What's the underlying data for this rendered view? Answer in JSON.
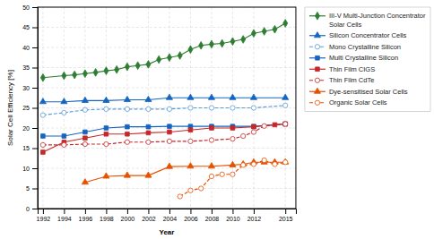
{
  "chart_data": {
    "type": "line",
    "xlabel": "Year",
    "ylabel": "Solar Cell Efficiency [%]",
    "xlim": [
      1991.5,
      2016
    ],
    "ylim": [
      0,
      50
    ],
    "xticks": [
      1992,
      1994,
      1996,
      1998,
      2000,
      2002,
      2004,
      2006,
      2008,
      2010,
      2012,
      2015
    ],
    "yticks": [
      0,
      5,
      10,
      15,
      20,
      25,
      30,
      35,
      40,
      45,
      50
    ],
    "grid": true,
    "legend": "right",
    "series": [
      {
        "name": "III-V Multi-Junction Concentrator\nSolar Cells",
        "color": "#2e7d32",
        "marker": "diamond",
        "line_style": "solid",
        "x": [
          1992,
          1994,
          1995,
          1996,
          1997,
          1998,
          1999,
          2000,
          2001,
          2002,
          2003,
          2004,
          2005,
          2006,
          2007,
          2008,
          2009,
          2010,
          2011,
          2012,
          2013,
          2014,
          2015
        ],
        "values": [
          32.5,
          33.0,
          33.2,
          33.5,
          33.8,
          34.2,
          34.5,
          35.2,
          35.5,
          35.8,
          37.0,
          37.5,
          38.0,
          39.5,
          40.5,
          40.8,
          41.0,
          41.5,
          42.0,
          43.5,
          44.0,
          44.5,
          46.0
        ]
      },
      {
        "name": "Silicon Concentrator Cells",
        "color": "#1565c0",
        "marker": "triangle",
        "line_style": "solid",
        "x": [
          1992,
          1994,
          1996,
          1998,
          2000,
          2002,
          2004,
          2006,
          2008,
          2010,
          2012,
          2015
        ],
        "values": [
          26.5,
          26.5,
          26.8,
          26.8,
          27.0,
          27.0,
          27.5,
          27.5,
          27.5,
          27.5,
          27.5,
          27.5
        ]
      },
      {
        "name": "Mono Crystalline Silicon",
        "color": "#5b9bd5",
        "marker": "circle-open",
        "line_style": "dashed",
        "x": [
          1992,
          1994,
          1996,
          1998,
          2000,
          2002,
          2004,
          2006,
          2008,
          2010,
          2012,
          2015
        ],
        "values": [
          23.2,
          23.8,
          24.5,
          24.7,
          24.7,
          24.7,
          24.7,
          25.0,
          25.0,
          25.0,
          25.0,
          25.6
        ]
      },
      {
        "name": "Multi Crystalline Silicon",
        "color": "#1565c0",
        "marker": "square",
        "line_style": "solid",
        "x": [
          1992,
          1994,
          1996,
          1998,
          2000,
          2002,
          2004,
          2006,
          2008,
          2010,
          2012,
          2015
        ],
        "values": [
          18.0,
          18.0,
          19.0,
          20.0,
          20.3,
          20.3,
          20.4,
          20.4,
          20.4,
          20.4,
          20.4,
          21.0
        ]
      },
      {
        "name": "Thin Film CIGS",
        "color": "#c62828",
        "marker": "square",
        "line_style": "solid",
        "x": [
          1992,
          1994,
          1996,
          1998,
          2000,
          2002,
          2004,
          2006,
          2008,
          2010,
          2012,
          2014,
          2015
        ],
        "values": [
          14.0,
          16.5,
          17.5,
          18.5,
          18.5,
          18.8,
          19.0,
          19.5,
          20.0,
          20.0,
          20.3,
          20.8,
          21.0
        ]
      },
      {
        "name": "Thin Film CdTe",
        "color": "#c62828",
        "marker": "circle-open",
        "line_style": "dashed",
        "x": [
          1992,
          1994,
          1996,
          1998,
          2000,
          2002,
          2004,
          2006,
          2008,
          2010,
          2011,
          2012,
          2013,
          2015
        ],
        "values": [
          15.8,
          15.8,
          16.0,
          16.0,
          16.5,
          16.5,
          16.7,
          16.7,
          17.0,
          17.3,
          18.0,
          19.0,
          20.5,
          21.0
        ]
      },
      {
        "name": "Dye-sensitised Solar Cells",
        "color": "#e65100",
        "marker": "triangle",
        "line_style": "solid",
        "x": [
          1996,
          1998,
          2000,
          2002,
          2004,
          2006,
          2008,
          2010,
          2011,
          2012,
          2013,
          2014,
          2015
        ],
        "values": [
          6.5,
          8.0,
          8.2,
          8.2,
          10.4,
          10.5,
          10.5,
          10.8,
          11.0,
          11.5,
          11.5,
          11.5,
          11.5
        ]
      },
      {
        "name": "Organic Solar Cells",
        "color": "#e65100",
        "marker": "circle-open",
        "line_style": "dashed",
        "x": [
          2005,
          2006,
          2007,
          2008,
          2009,
          2010,
          2011,
          2012,
          2013,
          2014,
          2015
        ],
        "values": [
          3.0,
          4.5,
          5.0,
          8.0,
          8.5,
          8.5,
          10.8,
          11.0,
          12.0,
          11.0,
          11.5
        ]
      }
    ]
  }
}
